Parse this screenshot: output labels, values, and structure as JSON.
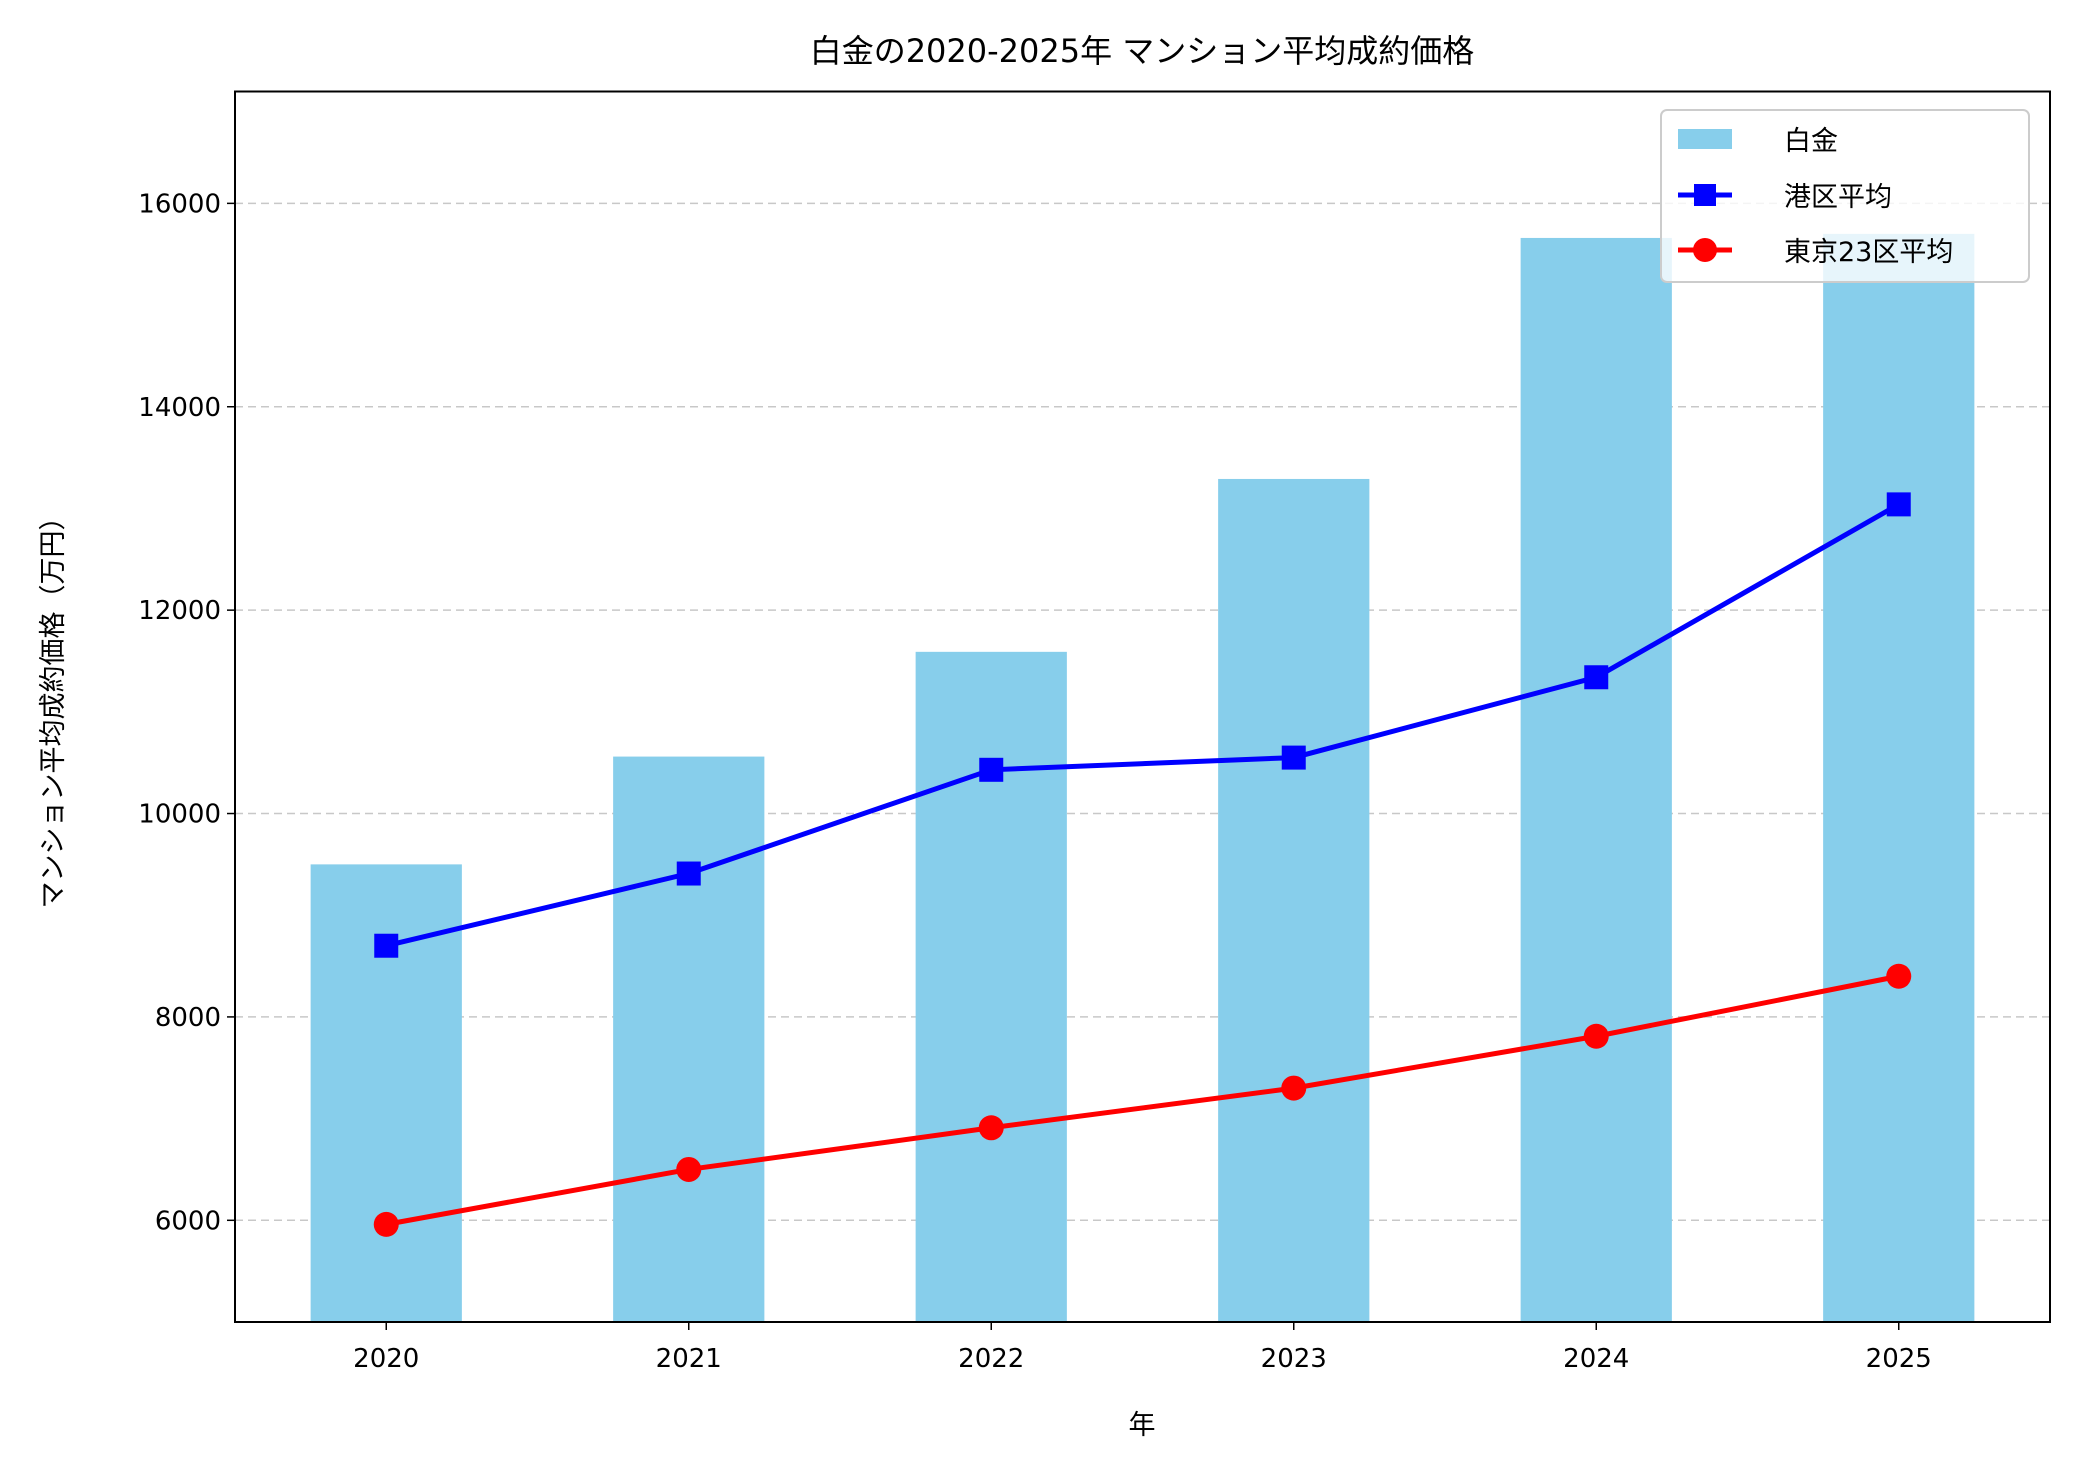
{
  "chart_data": {
    "type": "bar",
    "title": "白金の2020-2025年 マンション平均成約価格",
    "xlabel": "年",
    "ylabel": "マンション平均成約価格（万円）",
    "categories": [
      "2020",
      "2021",
      "2022",
      "2023",
      "2024",
      "2025"
    ],
    "ylim": [
      5000,
      17100
    ],
    "yticks": [
      6000,
      8000,
      10000,
      12000,
      14000,
      16000
    ],
    "grid": "y dashed",
    "legend_position": "top-right",
    "series": [
      {
        "name": "白金",
        "type": "bar",
        "color": "#87ceeb",
        "values": [
          9500,
          10560,
          11590,
          13290,
          15660,
          15700
        ]
      },
      {
        "name": "港区平均",
        "type": "line",
        "marker": "square",
        "color": "#0000ff",
        "values": [
          8700,
          9410,
          10430,
          10550,
          11340,
          13040
        ]
      },
      {
        "name": "東京23区平均",
        "type": "line",
        "marker": "circle",
        "color": "#ff0000",
        "values": [
          5960,
          6500,
          6910,
          7300,
          7810,
          8400
        ]
      }
    ]
  }
}
